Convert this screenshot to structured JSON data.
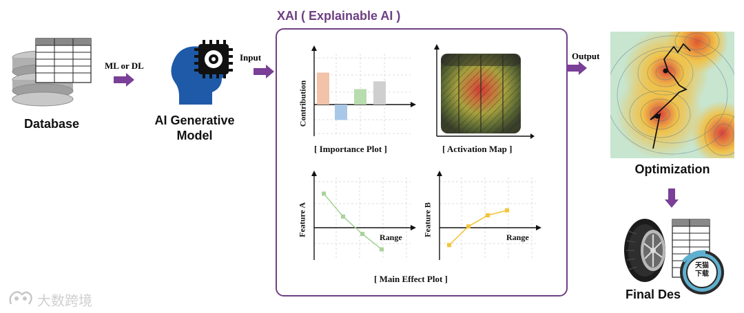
{
  "database": {
    "label": "Database"
  },
  "generative_model": {
    "label_line1": "AI Generative",
    "label_line2": "Model"
  },
  "flow": {
    "ml_dl_label": "ML or DL",
    "input_label": "Input",
    "output_label": "Output"
  },
  "xai": {
    "title": "XAI ( Explainable AI )",
    "importance_plot": {
      "caption": "[ Importance Plot ]",
      "ylabel": "Contribution"
    },
    "activation_map": {
      "caption": "[ Activation Map ]"
    },
    "main_effect": {
      "caption": "[ Main Effect Plot ]",
      "feature_a_label": "Feature A",
      "feature_b_label": "Feature B",
      "range_label_a": "Range",
      "range_label_b": "Range"
    }
  },
  "optimization": {
    "label": "Optimization"
  },
  "final_design": {
    "label": "Final Des"
  },
  "watermark": {
    "text": "大数跨境"
  },
  "badge": {
    "text_line1": "天猫",
    "text_line2": "下载"
  },
  "colors": {
    "arrow": "#7a3f97",
    "xai_border": "#6d3f83",
    "xai_title": "#6d3f83",
    "bar_orange": "#f2c3a8",
    "bar_blue": "#a8c8e8",
    "bar_green": "#b9dcae",
    "bar_gray": "#cfcfcf"
  },
  "chart_data": [
    {
      "type": "bar",
      "title": "[ Importance Plot ]",
      "ylabel": "Contribution",
      "categories": [
        "",
        "",
        "",
        ""
      ],
      "values": [
        0.62,
        -0.3,
        0.3,
        0.45
      ],
      "colors": [
        "#f2c3a8",
        "#a8c8e8",
        "#b9dcae",
        "#cfcfcf"
      ]
    },
    {
      "type": "line",
      "title": "[ Main Effect Plot ]",
      "ylabel": "Feature A",
      "xlabel": "Range",
      "x": [
        1,
        2,
        3,
        4
      ],
      "values": [
        0.55,
        0.18,
        -0.1,
        -0.35
      ],
      "color": "#a8d29a"
    },
    {
      "type": "line",
      "ylabel": "Feature B",
      "xlabel": "Range",
      "x": [
        1,
        2,
        3,
        4
      ],
      "values": [
        -0.28,
        0.02,
        0.2,
        0.28
      ],
      "color": "#f3c63a"
    }
  ]
}
